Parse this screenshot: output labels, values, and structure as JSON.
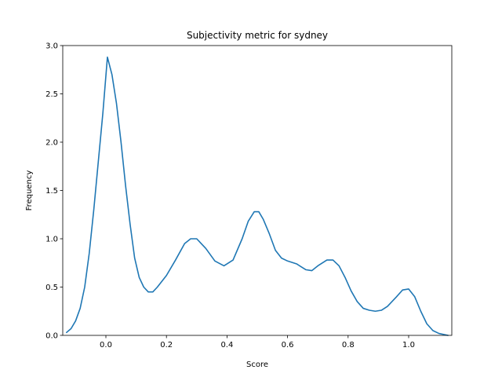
{
  "chart_data": {
    "type": "line",
    "title": "Subjectivity metric for sydney",
    "xlabel": "Score",
    "ylabel": "Frequency",
    "xlim": [
      -0.1425,
      1.1425
    ],
    "ylim": [
      0.0,
      3.0
    ],
    "x_ticks": [
      0.0,
      0.2,
      0.4,
      0.6,
      0.8,
      1.0
    ],
    "x_tick_labels": [
      "0.0",
      "0.2",
      "0.4",
      "0.6",
      "0.8",
      "1.0"
    ],
    "y_ticks": [
      0.0,
      0.5,
      1.0,
      1.5,
      2.0,
      2.5,
      3.0
    ],
    "y_tick_labels": [
      "0.0",
      "0.5",
      "1.0",
      "1.5",
      "2.0",
      "2.5",
      "3.0"
    ],
    "grid": false,
    "line_color": "#1f77b4",
    "series": [
      {
        "x": [
          -0.13,
          -0.115,
          -0.1,
          -0.085,
          -0.07,
          -0.055,
          -0.04,
          -0.025,
          -0.01,
          0.005,
          0.02,
          0.035,
          0.05,
          0.065,
          0.08,
          0.095,
          0.11,
          0.125,
          0.14,
          0.155,
          0.17,
          0.2,
          0.23,
          0.26,
          0.28,
          0.3,
          0.33,
          0.36,
          0.39,
          0.42,
          0.45,
          0.47,
          0.49,
          0.505,
          0.52,
          0.54,
          0.56,
          0.58,
          0.6,
          0.63,
          0.66,
          0.68,
          0.7,
          0.73,
          0.75,
          0.77,
          0.79,
          0.81,
          0.83,
          0.85,
          0.87,
          0.89,
          0.91,
          0.93,
          0.96,
          0.98,
          1.0,
          1.02,
          1.04,
          1.06,
          1.08,
          1.1,
          1.13
        ],
        "y": [
          0.03,
          0.07,
          0.15,
          0.28,
          0.5,
          0.85,
          1.3,
          1.8,
          2.3,
          2.88,
          2.7,
          2.4,
          2.0,
          1.55,
          1.15,
          0.8,
          0.6,
          0.5,
          0.45,
          0.45,
          0.5,
          0.62,
          0.78,
          0.95,
          1.0,
          1.0,
          0.9,
          0.77,
          0.72,
          0.78,
          1.0,
          1.18,
          1.28,
          1.28,
          1.2,
          1.05,
          0.88,
          0.8,
          0.77,
          0.74,
          0.68,
          0.67,
          0.72,
          0.78,
          0.78,
          0.72,
          0.6,
          0.46,
          0.35,
          0.28,
          0.26,
          0.25,
          0.26,
          0.3,
          0.4,
          0.47,
          0.48,
          0.4,
          0.25,
          0.12,
          0.05,
          0.02,
          0.0
        ]
      }
    ]
  }
}
